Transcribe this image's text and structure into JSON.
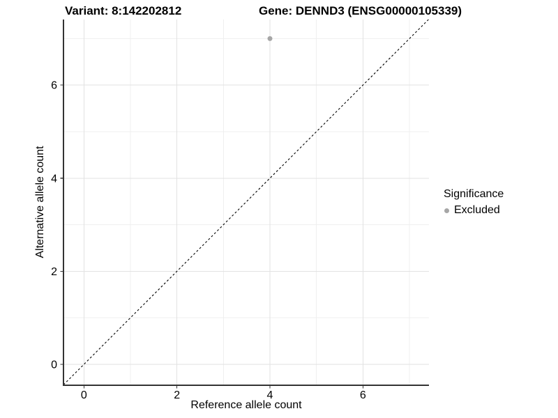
{
  "titles": {
    "variant": "Variant: 8:142202812",
    "gene": "Gene: DENND3 (ENSG00000105339)"
  },
  "axes": {
    "x_label": "Reference allele count",
    "y_label": "Alternative allele count"
  },
  "legend": {
    "title": "Significance",
    "items": [
      {
        "label": "Excluded",
        "color": "#a6a6a6"
      }
    ]
  },
  "colors": {
    "background": "#ffffff",
    "panel_background": "#ffffff",
    "grid_major": "#e2e2e2",
    "grid_minor": "#efefef",
    "axis_line": "#333333",
    "tick_mark": "#333333",
    "tick_label": "#000000",
    "reference_line": "#000000",
    "point": "#a6a6a6"
  },
  "chart_data": {
    "type": "scatter",
    "title": "",
    "xlabel": "Reference allele count",
    "ylabel": "Alternative allele count",
    "xlim": [
      -0.44,
      7.42
    ],
    "ylim": [
      -0.45,
      7.41
    ],
    "x_ticks": [
      0,
      2,
      4,
      6
    ],
    "y_ticks": [
      0,
      2,
      4,
      6
    ],
    "x_minor_ticks": [
      1,
      3,
      5,
      7
    ],
    "y_minor_ticks": [
      1,
      3,
      5,
      7
    ],
    "grid": true,
    "legend_position": "right",
    "reference_line": {
      "type": "identity",
      "slope": 1,
      "intercept": 0,
      "style": "dashed"
    },
    "series": [
      {
        "name": "Excluded",
        "color": "#a6a6a6",
        "points": [
          {
            "x": 4,
            "y": 7
          }
        ]
      }
    ]
  }
}
